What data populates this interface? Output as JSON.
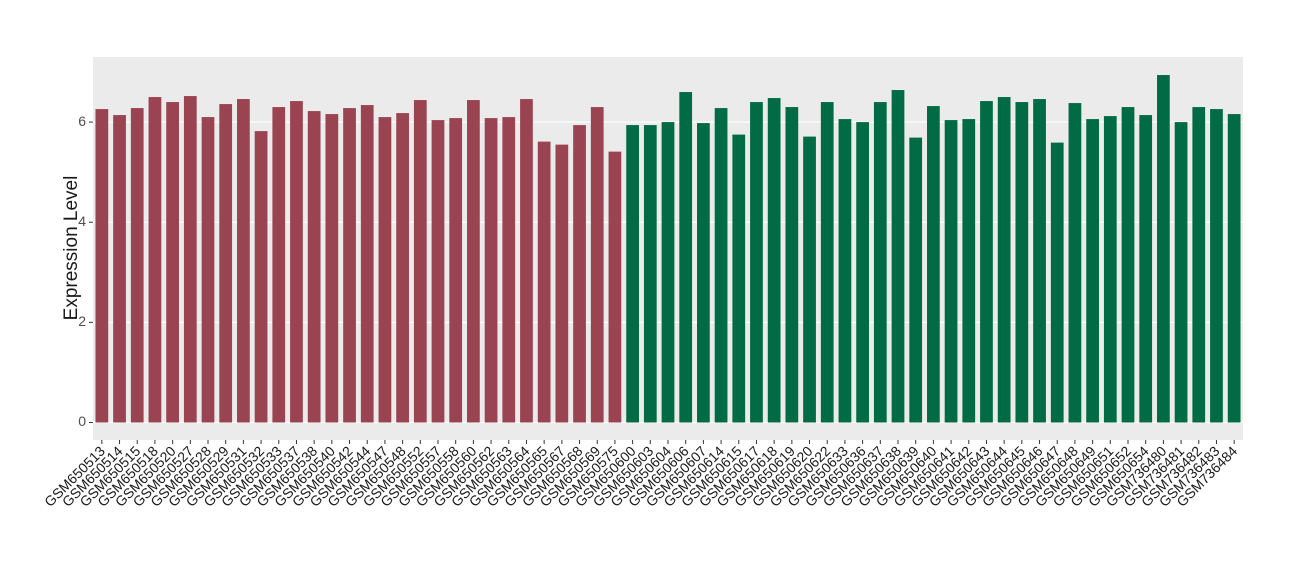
{
  "chart_data": {
    "type": "bar",
    "y_label": "Expression Level",
    "categories": [
      "GSM650513",
      "GSM650514",
      "GSM650515",
      "GSM650518",
      "GSM650520",
      "GSM650527",
      "GSM650528",
      "GSM650529",
      "GSM650531",
      "GSM650532",
      "GSM650533",
      "GSM650537",
      "GSM650538",
      "GSM650540",
      "GSM650542",
      "GSM650544",
      "GSM650547",
      "GSM650548",
      "GSM650552",
      "GSM650557",
      "GSM650558",
      "GSM650560",
      "GSM650562",
      "GSM650563",
      "GSM650564",
      "GSM650565",
      "GSM650567",
      "GSM650568",
      "GSM650569",
      "GSM650575",
      "GSM650600",
      "GSM650603",
      "GSM650604",
      "GSM650606",
      "GSM650607",
      "GSM650614",
      "GSM650615",
      "GSM650617",
      "GSM650618",
      "GSM650619",
      "GSM650620",
      "GSM650622",
      "GSM650633",
      "GSM650636",
      "GSM650637",
      "GSM650638",
      "GSM650639",
      "GSM650640",
      "GSM650641",
      "GSM650642",
      "GSM650643",
      "GSM650644",
      "GSM650645",
      "GSM650646",
      "GSM650647",
      "GSM650648",
      "GSM650649",
      "GSM650651",
      "GSM650652",
      "GSM650654",
      "GSM736480",
      "GSM736481",
      "GSM736482",
      "GSM736483",
      "GSM736484"
    ],
    "values": [
      6.26,
      6.14,
      6.28,
      6.5,
      6.4,
      6.52,
      6.1,
      6.36,
      6.46,
      5.82,
      6.3,
      6.42,
      6.22,
      6.16,
      6.28,
      6.34,
      6.1,
      6.18,
      6.44,
      6.04,
      6.08,
      6.44,
      6.08,
      6.1,
      6.46,
      5.61,
      5.55,
      5.94,
      6.3,
      5.41,
      5.94,
      5.94,
      6.0,
      6.6,
      5.98,
      6.28,
      5.75,
      6.4,
      6.48,
      6.3,
      5.71,
      6.4,
      6.06,
      6.0,
      6.4,
      6.64,
      5.69,
      6.32,
      6.04,
      6.06,
      6.42,
      6.5,
      6.4,
      6.46,
      5.59,
      6.38,
      6.06,
      6.12,
      6.3,
      6.14,
      6.94,
      6.0,
      6.3,
      6.26,
      6.16
    ],
    "colors": [
      "#9b4451",
      "#9b4451",
      "#9b4451",
      "#9b4451",
      "#9b4451",
      "#9b4451",
      "#9b4451",
      "#9b4451",
      "#9b4451",
      "#9b4451",
      "#9b4451",
      "#9b4451",
      "#9b4451",
      "#9b4451",
      "#9b4451",
      "#9b4451",
      "#9b4451",
      "#9b4451",
      "#9b4451",
      "#9b4451",
      "#9b4451",
      "#9b4451",
      "#9b4451",
      "#9b4451",
      "#9b4451",
      "#9b4451",
      "#9b4451",
      "#9b4451",
      "#9b4451",
      "#9b4451",
      "#006b45",
      "#006b45",
      "#006b45",
      "#006b45",
      "#006b45",
      "#006b45",
      "#006b45",
      "#006b45",
      "#006b45",
      "#006b45",
      "#006b45",
      "#006b45",
      "#006b45",
      "#006b45",
      "#006b45",
      "#006b45",
      "#006b45",
      "#006b45",
      "#006b45",
      "#006b45",
      "#006b45",
      "#006b45",
      "#006b45",
      "#006b45",
      "#006b45",
      "#006b45",
      "#006b45",
      "#006b45",
      "#006b45",
      "#006b45",
      "#006b45",
      "#006b45",
      "#006b45",
      "#006b45",
      "#006b45"
    ],
    "ylim": [
      -0.35,
      7.3
    ],
    "yticks": [
      0,
      2,
      4,
      6
    ],
    "grid": true
  }
}
